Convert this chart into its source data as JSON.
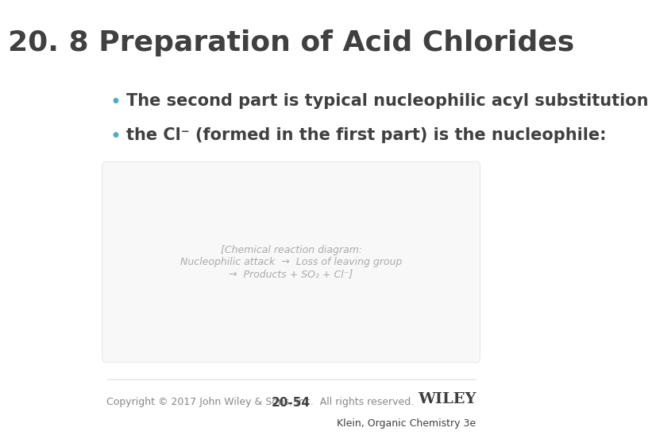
{
  "title": "20. 8 Preparation of Acid Chlorides",
  "bullet1": "The second part is typical nucleophilic acyl substitution",
  "bullet2": "the Cl⁻ (formed in the first part) is the nucleophile:",
  "bullet_color": "#4AADCD",
  "title_color": "#404040",
  "text_color": "#404040",
  "background_color": "#ffffff",
  "copyright_text": "Copyright © 2017 John Wiley & Sons, Inc.  All rights reserved.",
  "page_number": "20-54",
  "publisher": "WILEY",
  "book_ref": "Klein, Organic Chemistry 3e",
  "title_fontsize": 26,
  "bullet_fontsize": 15,
  "footer_fontsize": 9,
  "image_placeholder_color": "#f8f8f8",
  "image_border_color": "#dddddd"
}
